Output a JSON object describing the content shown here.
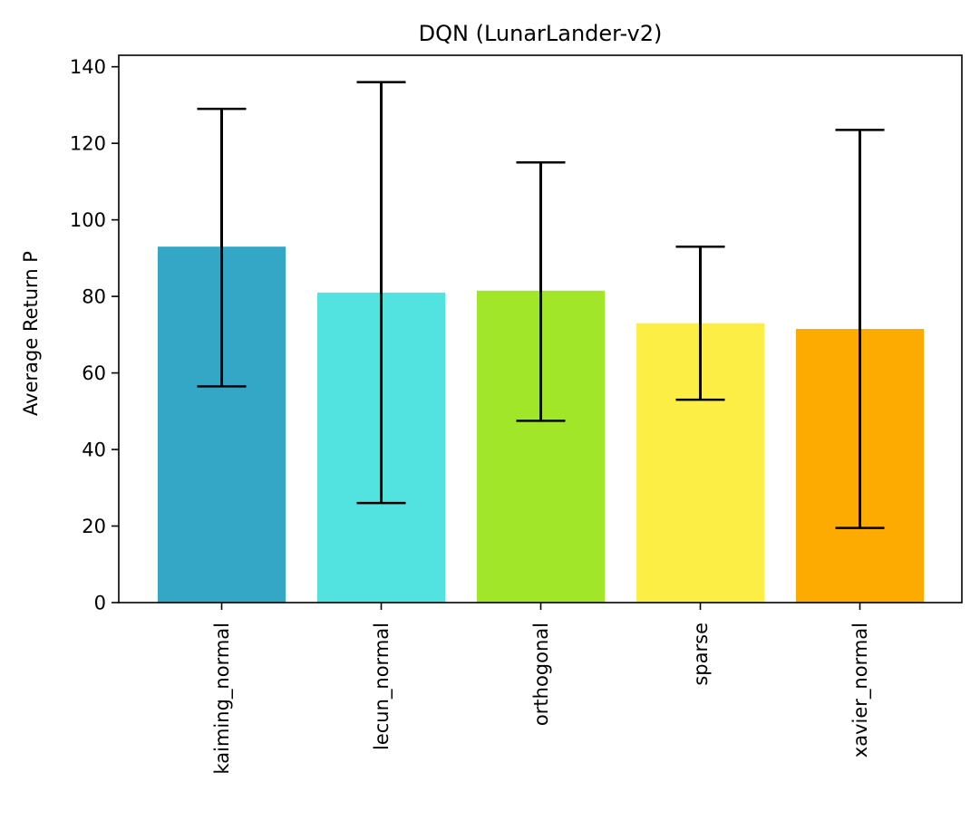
{
  "chart_data": {
    "type": "bar",
    "title": "DQN (LunarLander-v2)",
    "xlabel": "",
    "ylabel": "Average Return P",
    "categories": [
      "kaiming_normal",
      "lecun_normal",
      "orthogonal",
      "sparse",
      "xavier_normal"
    ],
    "values": [
      93,
      81,
      81.5,
      73,
      71.5
    ],
    "error_low": [
      56.5,
      26,
      47.5,
      53,
      19.5
    ],
    "error_high": [
      129,
      136,
      115,
      93,
      123.5
    ],
    "colors": [
      "#34a7c6",
      "#52e2e0",
      "#a1e629",
      "#fdee45",
      "#fdab00"
    ],
    "ylim": [
      0,
      143
    ],
    "yticks": [
      0,
      20,
      40,
      60,
      80,
      100,
      120,
      140
    ],
    "grid": false
  }
}
